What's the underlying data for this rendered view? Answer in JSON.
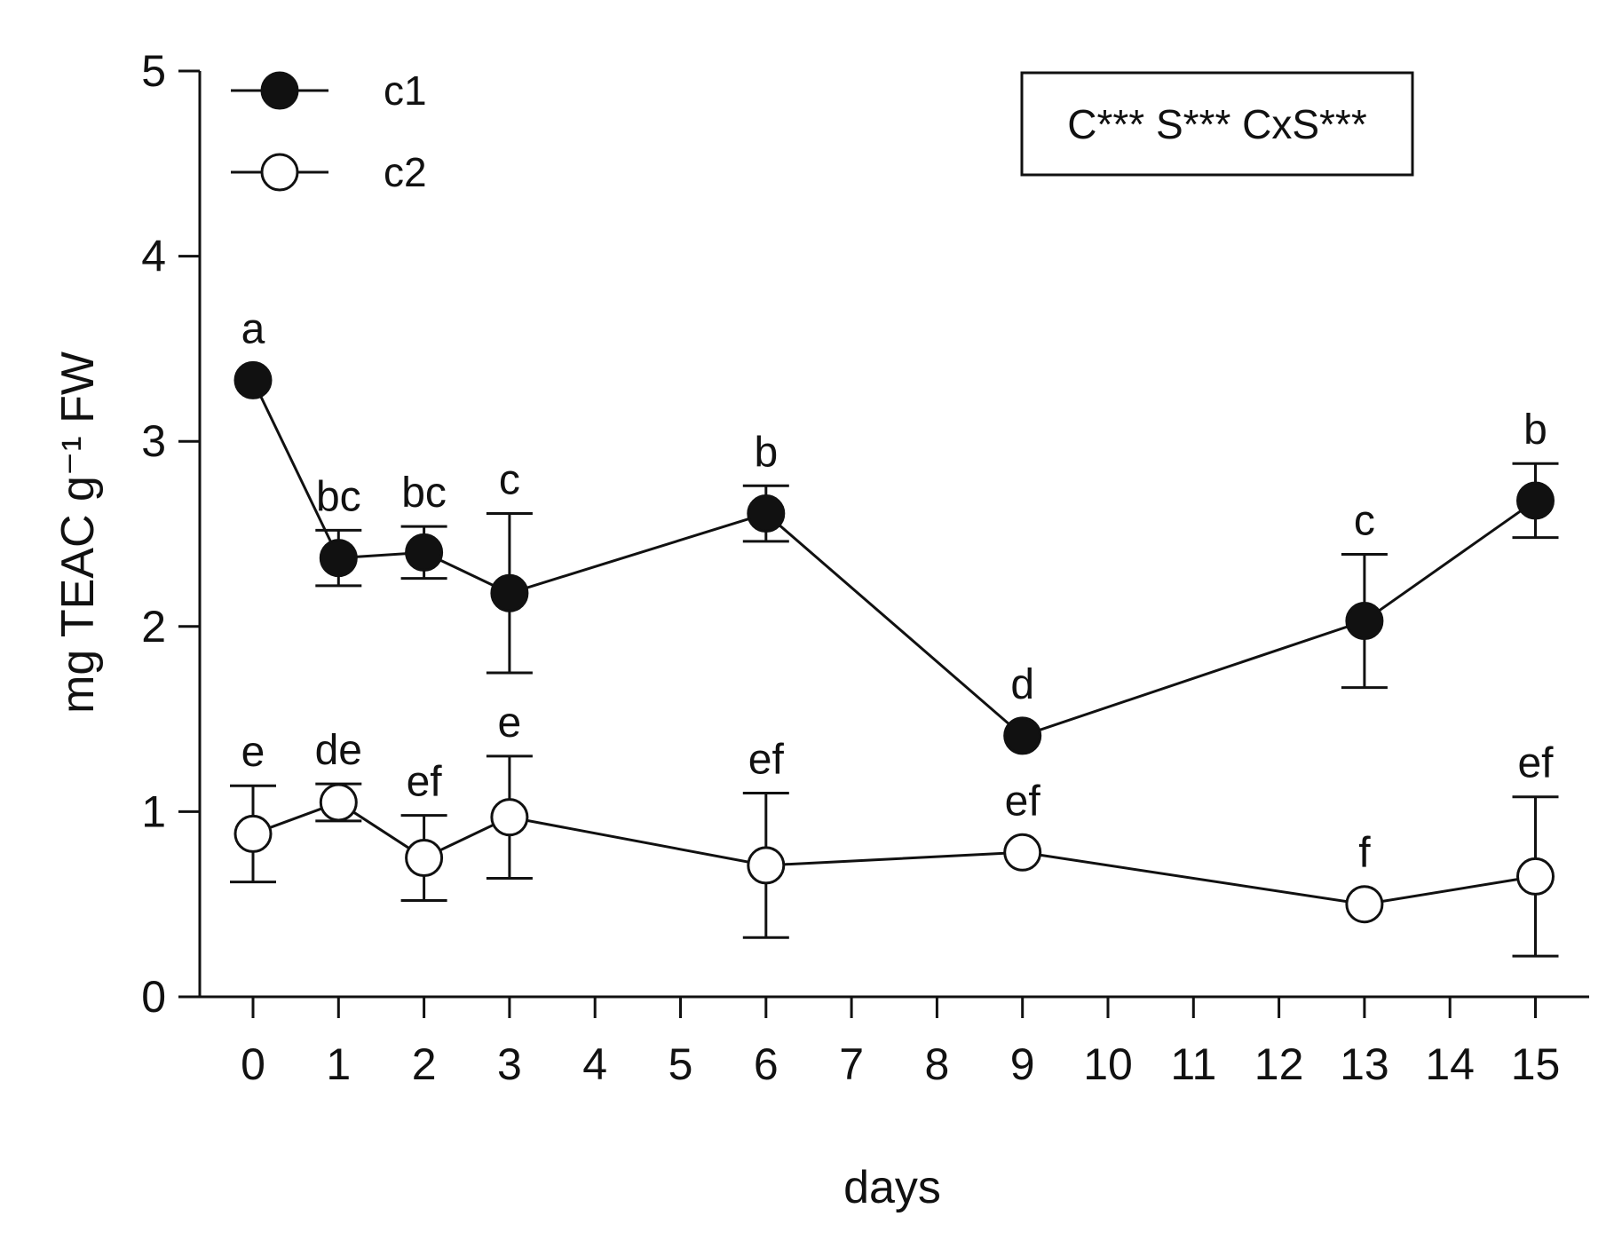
{
  "chart_data": {
    "type": "line",
    "xlabel": "days",
    "ylabel": "mg TEAC g⁻¹ FW",
    "ylim": [
      0,
      5
    ],
    "yticks": [
      0,
      1,
      2,
      3,
      4,
      5
    ],
    "xticks": [
      0,
      1,
      2,
      3,
      4,
      5,
      6,
      7,
      8,
      9,
      10,
      11,
      12,
      13,
      14,
      15
    ],
    "grid": false,
    "legend_position": "top-left",
    "stats_box": "C*** S*** CxS***",
    "series": [
      {
        "name": "c1",
        "marker": "filled-circle",
        "x": [
          0,
          1,
          2,
          3,
          6,
          9,
          13,
          15
        ],
        "y": [
          3.33,
          2.37,
          2.4,
          2.18,
          2.61,
          1.41,
          2.03,
          2.68
        ],
        "err": [
          0,
          0.15,
          0.14,
          0.43,
          0.15,
          0,
          0.36,
          0.2
        ],
        "labels": [
          "a",
          "bc",
          "bc",
          "c",
          "b",
          "d",
          "c",
          "b"
        ]
      },
      {
        "name": "c2",
        "marker": "open-circle",
        "x": [
          0,
          1,
          2,
          3,
          6,
          9,
          13,
          15
        ],
        "y": [
          0.88,
          1.05,
          0.75,
          0.97,
          0.71,
          0.78,
          0.5,
          0.65
        ],
        "err": [
          0.26,
          0.1,
          0.23,
          0.33,
          0.39,
          0,
          0,
          0.43
        ],
        "labels": [
          "e",
          "de",
          "ef",
          "e",
          "ef",
          "ef",
          "f",
          "ef"
        ]
      }
    ]
  },
  "colors": {
    "ink": "#111111",
    "marker_fill_open": "#ffffff"
  }
}
